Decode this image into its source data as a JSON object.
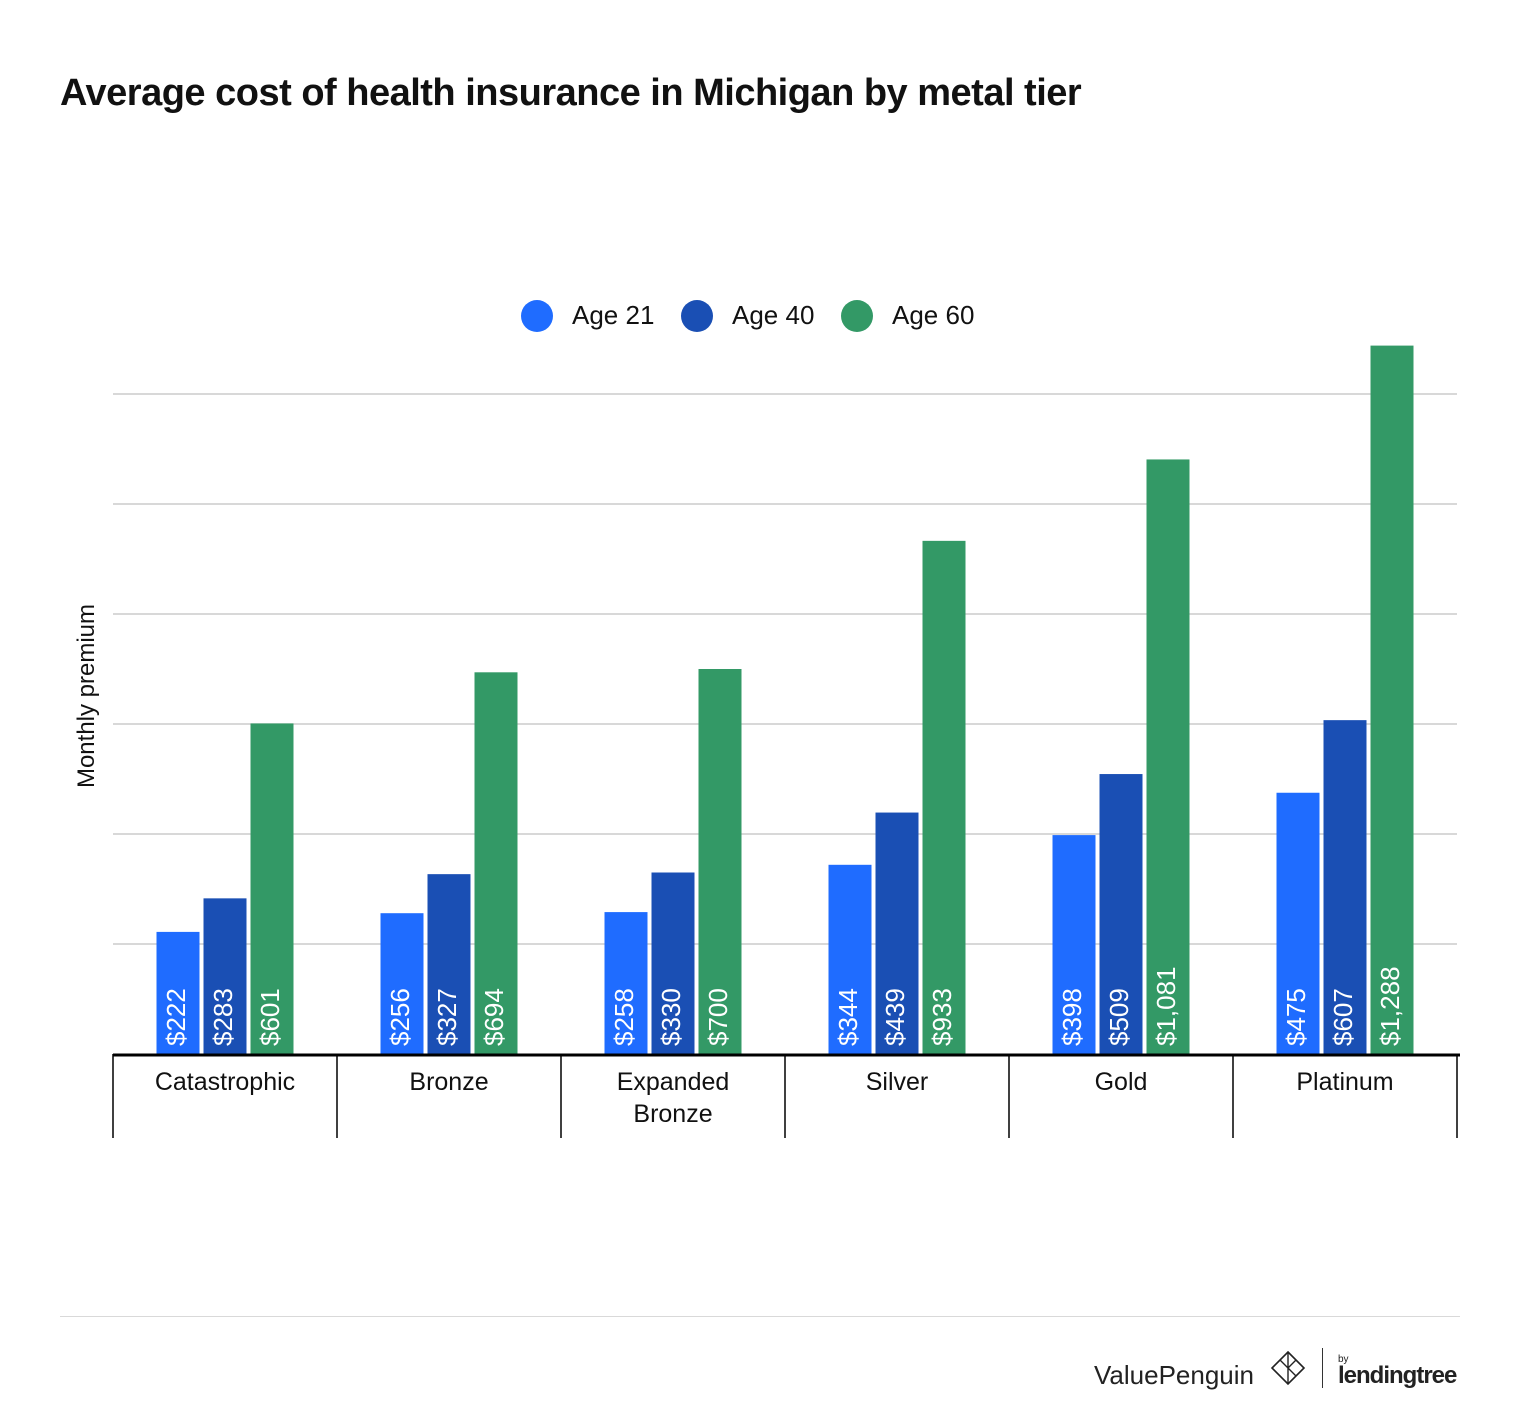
{
  "title": "Average cost of health insurance in Michigan by metal tier",
  "colors": {
    "age21": "#1f6cff",
    "age40": "#1a4fb4",
    "age60": "#339966",
    "grid": "#cccccc",
    "axis": "#000000"
  },
  "chart_data": {
    "type": "bar",
    "categories": [
      "Catastrophic",
      "Bronze",
      "Expanded Bronze",
      "Silver",
      "Gold",
      "Platinum"
    ],
    "series": [
      {
        "name": "Age 21",
        "values": [
          222,
          256,
          258,
          344,
          398,
          475
        ],
        "labels": [
          "$222",
          "$256",
          "$258",
          "$344",
          "$398",
          "$475"
        ]
      },
      {
        "name": "Age 40",
        "values": [
          283,
          327,
          330,
          439,
          509,
          607
        ],
        "labels": [
          "$283",
          "$327",
          "$330",
          "$439",
          "$509",
          "$607"
        ]
      },
      {
        "name": "Age 60",
        "values": [
          601,
          694,
          700,
          933,
          1081,
          1288
        ],
        "labels": [
          "$601",
          "$694",
          "$700",
          "$933",
          "$1,081",
          "$1,288"
        ]
      }
    ],
    "ylabel": "Monthly premium",
    "xlabel": "",
    "ylim": [
      0,
      1200
    ],
    "y_gridlines": [
      200,
      400,
      600,
      800,
      1000,
      1200
    ],
    "y_tick_labels_shown": false,
    "legend_position": "top-center",
    "grid": true
  },
  "footer": {
    "brand": "ValuePenguin",
    "by": "by",
    "partner": "lendingtree"
  }
}
